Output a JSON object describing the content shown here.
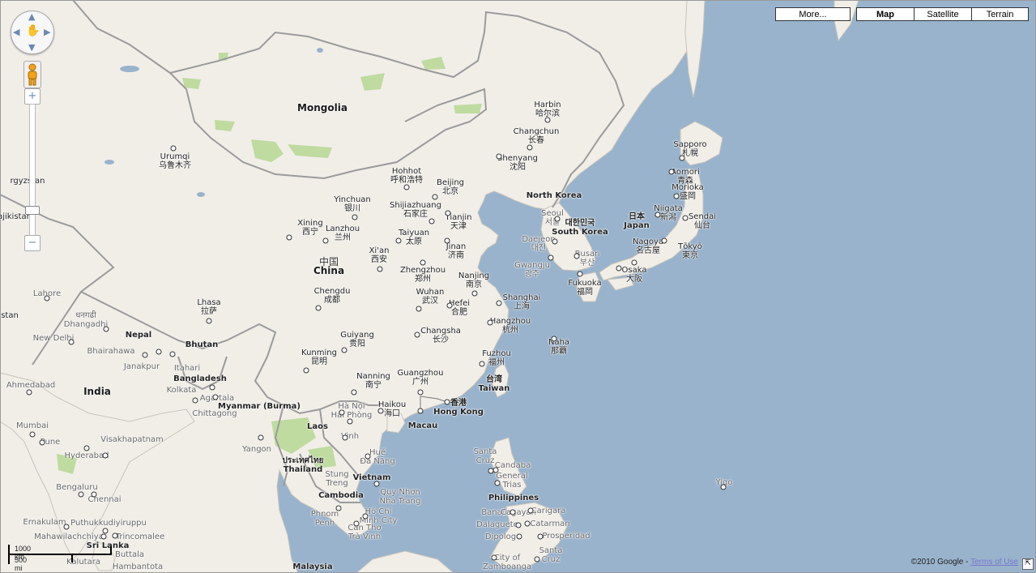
{
  "map_types": {
    "more": "More...",
    "map": "Map",
    "satellite": "Satellite",
    "terrain": "Terrain",
    "selected": "map"
  },
  "zoom": {
    "plus": "+",
    "minus": "−"
  },
  "scale": {
    "metric": "1000 km",
    "imperial": "500 mi"
  },
  "footer": {
    "copyright": "©2010 Google - ",
    "terms": "Terms of Use"
  },
  "colors": {
    "water": "#99b3cc",
    "land": "#f1eee8",
    "park": "#bfdba0",
    "border": "#9b9b9b"
  },
  "countries": [
    {
      "en": "Mongolia"
    },
    {
      "en": "China",
      "cj": "中国"
    },
    {
      "en": "India"
    },
    {
      "en": "Nepal"
    },
    {
      "en": "Bhutan"
    },
    {
      "en": "Bangladesh"
    },
    {
      "en": "Myanmar (Burma)"
    },
    {
      "en": "Laos"
    },
    {
      "en": "Thailand",
      "cj": "ประเทศไทย"
    },
    {
      "en": "Vietnam"
    },
    {
      "en": "Cambodia"
    },
    {
      "en": "Sri Lanka"
    },
    {
      "en": "Philippines"
    },
    {
      "en": "Taiwan",
      "cj": "台湾"
    },
    {
      "en": "South Korea",
      "cj": "대한민국"
    },
    {
      "en": "North Korea"
    },
    {
      "en": "Japan",
      "cj": "日本"
    },
    {
      "en": "Malaysia"
    },
    {
      "en": "Macau"
    },
    {
      "en": "Hong Kong",
      "cj": "香港"
    },
    {
      "en": "rgyzstan"
    },
    {
      "en": "ajikistan"
    },
    {
      "en": "stan"
    }
  ],
  "cities": [
    {
      "en": "Harbin",
      "cj": "哈尔滨"
    },
    {
      "en": "Changchun",
      "cj": "长春"
    },
    {
      "en": "Shenyang",
      "cj": "沈阳"
    },
    {
      "en": "Hohhot",
      "cj": "呼和浩特"
    },
    {
      "en": "Beijing",
      "cj": "北京"
    },
    {
      "en": "Urumqi",
      "cj": "乌鲁木齐"
    },
    {
      "en": "Yinchuan",
      "cj": "银川"
    },
    {
      "en": "Shijiazhuang",
      "cj": "石家庄"
    },
    {
      "en": "Tianjin",
      "cj": "天津"
    },
    {
      "en": "Xining",
      "cj": "西宁"
    },
    {
      "en": "Lanzhou",
      "cj": "兰州"
    },
    {
      "en": "Taiyuan",
      "cj": "太原"
    },
    {
      "en": "Jinan",
      "cj": "济南"
    },
    {
      "en": "Xi'an",
      "cj": "西安"
    },
    {
      "en": "Zhengzhou",
      "cj": "郑州"
    },
    {
      "en": "Nanjing",
      "cj": "南京"
    },
    {
      "en": "Chengdu",
      "cj": "成都"
    },
    {
      "en": "Wuhan",
      "cj": "武汉"
    },
    {
      "en": "Hefei",
      "cj": "合肥"
    },
    {
      "en": "Shanghai",
      "cj": "上海"
    },
    {
      "en": "Lhasa",
      "cj": "拉萨"
    },
    {
      "en": "Hangzhou",
      "cj": "杭州"
    },
    {
      "en": "Changsha",
      "cj": "长沙"
    },
    {
      "en": "Guiyang",
      "cj": "贵阳"
    },
    {
      "en": "Kunming",
      "cj": "昆明"
    },
    {
      "en": "Fuzhou",
      "cj": "福州"
    },
    {
      "en": "Nanning",
      "cj": "南宁"
    },
    {
      "en": "Guangzhou",
      "cj": "广州"
    },
    {
      "en": "Haikou",
      "cj": "海口"
    },
    {
      "en": "Sapporo",
      "cj": "札幌"
    },
    {
      "en": "Aomori",
      "cj": "青森"
    },
    {
      "en": "Morioka",
      "cj": "盛岡"
    },
    {
      "en": "Niigata",
      "cj": "新潟"
    },
    {
      "en": "Sendai",
      "cj": "仙台"
    },
    {
      "en": "Nagoya",
      "cj": "名古屋"
    },
    {
      "en": "Tōkyō",
      "cj": "東京"
    },
    {
      "en": "Osaka",
      "cj": "大阪"
    },
    {
      "en": "Fukuoka",
      "cj": "福岡"
    },
    {
      "en": "Naha",
      "cj": "那覇"
    },
    {
      "en": "Seoul",
      "cj": "서울"
    },
    {
      "en": "Daejeon",
      "cj": "대전"
    },
    {
      "en": "Busan",
      "cj": "부산"
    },
    {
      "en": "Gwangju",
      "cj": "광주"
    },
    {
      "en": "Hà Nội",
      "cj": "Hải Phòng"
    },
    {
      "en": "Vinh"
    },
    {
      "en": "Huế",
      "cj": "Đà Nẵng"
    },
    {
      "en": "Quy Nhơn",
      "cj": "Nha Trang"
    },
    {
      "en": "Hồ Chí",
      "cj": "Minh City"
    },
    {
      "en": "Cần Thơ",
      "cj": "Trà Vinh"
    },
    {
      "en": "Stung",
      "cj": "Treng"
    },
    {
      "en": "Phnom",
      "cj": "Penh"
    },
    {
      "en": "Yangon"
    },
    {
      "en": "Chittagong"
    },
    {
      "en": "Kolkata"
    },
    {
      "en": "Agartala"
    },
    {
      "en": "Itahari"
    },
    {
      "en": "Dhangadhi"
    },
    {
      "en": "Bhairahawa"
    },
    {
      "en": "Janakpur"
    },
    {
      "en": "New Delhi"
    },
    {
      "en": "Ahmedabad"
    },
    {
      "en": "Mumbai"
    },
    {
      "en": "Pune"
    },
    {
      "en": "Hyderabad"
    },
    {
      "en": "Visakhapatnam"
    },
    {
      "en": "Bengaluru"
    },
    {
      "en": "Chennai"
    },
    {
      "en": "Ernakulam"
    },
    {
      "en": "Puthukkudiyiruppu"
    },
    {
      "en": "Mahawilachchiya"
    },
    {
      "en": "Trincomalee"
    },
    {
      "en": "Kalutara"
    },
    {
      "en": "Buttala"
    },
    {
      "en": "Hambantota"
    },
    {
      "en": "Lahore"
    },
    {
      "en": "Santa",
      "cj": "Cruz"
    },
    {
      "en": "Candaba"
    },
    {
      "en": "General",
      "cj": "Trias"
    },
    {
      "en": "Banate"
    },
    {
      "en": "Catarman"
    },
    {
      "en": "Cagayan"
    },
    {
      "en": "Dalaguete"
    },
    {
      "en": "Dipolog"
    },
    {
      "en": "Prosperidad"
    },
    {
      "en": "Santa",
      "cj": "Cruz"
    },
    {
      "en": "City of",
      "cj": "Zamboanga"
    },
    {
      "en": "Yigo"
    },
    {
      "en": "धनगढी"
    },
    {
      "en": "Carigara"
    }
  ]
}
